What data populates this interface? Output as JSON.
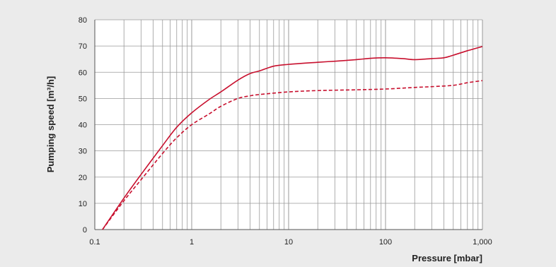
{
  "chart_data": {
    "type": "line",
    "title": "",
    "xlabel": "Pressure [mbar]",
    "ylabel": "Pumping speed [m³/h]",
    "x_scale": "log",
    "xlim": [
      0.1,
      1000
    ],
    "ylim": [
      0,
      80
    ],
    "x_ticks": [
      {
        "value": 0.1,
        "label": "0.1"
      },
      {
        "value": 1,
        "label": "1"
      },
      {
        "value": 10,
        "label": "10"
      },
      {
        "value": 100,
        "label": "100"
      },
      {
        "value": 1000,
        "label": "1,000"
      }
    ],
    "y_ticks": [
      {
        "value": 0,
        "label": "0"
      },
      {
        "value": 10,
        "label": "10"
      },
      {
        "value": 20,
        "label": "20"
      },
      {
        "value": 30,
        "label": "30"
      },
      {
        "value": 40,
        "label": "40"
      },
      {
        "value": 50,
        "label": "50"
      },
      {
        "value": 60,
        "label": "60"
      },
      {
        "value": 70,
        "label": "70"
      },
      {
        "value": 80,
        "label": "80"
      }
    ],
    "grid": true,
    "series": [
      {
        "style": "solid",
        "color": "#c8102e",
        "points": [
          [
            0.12,
            0
          ],
          [
            0.2,
            12
          ],
          [
            0.3,
            21
          ],
          [
            0.5,
            32
          ],
          [
            0.7,
            39
          ],
          [
            1,
            44.5
          ],
          [
            1.5,
            49.5
          ],
          [
            2,
            52.5
          ],
          [
            3,
            57
          ],
          [
            4,
            59.5
          ],
          [
            5,
            60.5
          ],
          [
            7,
            62.3
          ],
          [
            10,
            63
          ],
          [
            20,
            63.8
          ],
          [
            30,
            64.2
          ],
          [
            50,
            64.8
          ],
          [
            70,
            65.3
          ],
          [
            100,
            65.5
          ],
          [
            150,
            65.2
          ],
          [
            200,
            64.8
          ],
          [
            300,
            65.2
          ],
          [
            400,
            65.5
          ],
          [
            500,
            66.5
          ],
          [
            700,
            68.2
          ],
          [
            1000,
            69.8
          ]
        ]
      },
      {
        "style": "dashed",
        "color": "#c8102e",
        "points": [
          [
            0.12,
            0
          ],
          [
            0.2,
            11
          ],
          [
            0.3,
            19
          ],
          [
            0.5,
            29
          ],
          [
            0.7,
            35
          ],
          [
            1,
            40
          ],
          [
            1.5,
            44
          ],
          [
            2,
            47
          ],
          [
            3,
            50
          ],
          [
            4,
            51
          ],
          [
            5,
            51.5
          ],
          [
            10,
            52.5
          ],
          [
            20,
            53
          ],
          [
            50,
            53.3
          ],
          [
            100,
            53.6
          ],
          [
            200,
            54.2
          ],
          [
            300,
            54.5
          ],
          [
            500,
            55
          ],
          [
            700,
            56
          ],
          [
            1000,
            56.8
          ]
        ]
      }
    ]
  }
}
